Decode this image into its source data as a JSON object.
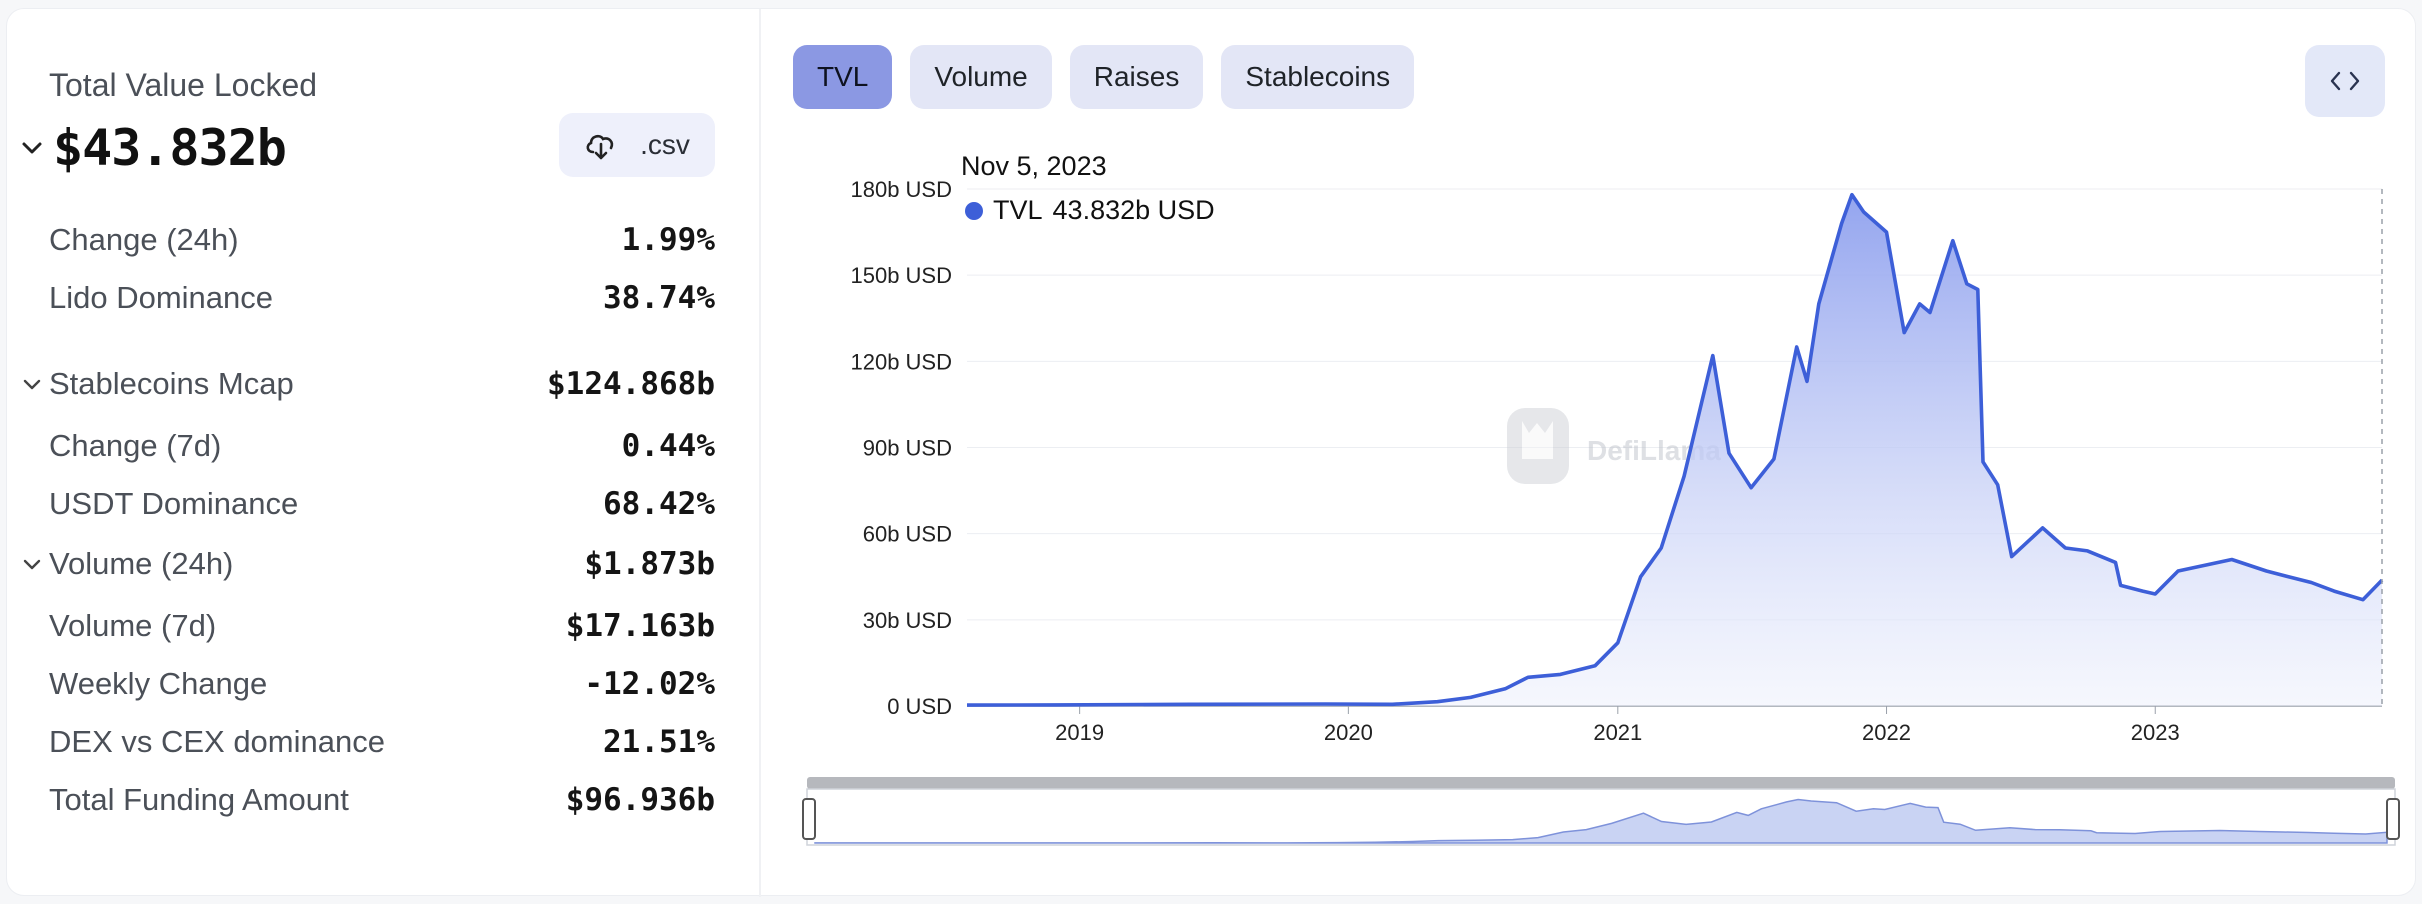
{
  "stats": {
    "tvl_label": "Total Value Locked",
    "tvl_value": "$43.832b",
    "csv_label": ".csv",
    "rows": [
      {
        "label": "Change (24h)",
        "value": "1.99%"
      },
      {
        "label": "Lido Dominance",
        "value": "38.74%"
      },
      {
        "label": "Stablecoins Mcap",
        "value": "$124.868b"
      },
      {
        "label": "Change (7d)",
        "value": "0.44%"
      },
      {
        "label": "USDT Dominance",
        "value": "68.42%"
      },
      {
        "label": "Volume (24h)",
        "value": "$1.873b"
      },
      {
        "label": "Volume (7d)",
        "value": "$17.163b"
      },
      {
        "label": "Weekly Change",
        "value": "-12.02%"
      },
      {
        "label": "DEX vs CEX dominance",
        "value": "21.51%"
      },
      {
        "label": "Total Funding Amount",
        "value": "$96.936b"
      }
    ]
  },
  "tabs": [
    {
      "label": "TVL",
      "active": true
    },
    {
      "label": "Volume"
    },
    {
      "label": "Raises"
    },
    {
      "label": "Stablecoins"
    }
  ],
  "tooltip": {
    "date": "Nov 5, 2023",
    "series": "TVL",
    "value": "43.832b USD"
  },
  "watermark": "DefiLlama",
  "colors": {
    "line": "#3d5fd8",
    "active_tab": "#8b98e3",
    "tab": "#e3e6f6"
  },
  "chart_data": {
    "type": "area",
    "series": [
      {
        "name": "TVL",
        "points": [
          [
            "2018-08-01",
            0.3
          ],
          [
            "2018-12-01",
            0.4
          ],
          [
            "2019-06-01",
            0.6
          ],
          [
            "2019-12-01",
            0.7
          ],
          [
            "2020-03-01",
            0.6
          ],
          [
            "2020-05-01",
            1.5
          ],
          [
            "2020-06-15",
            3
          ],
          [
            "2020-08-01",
            6
          ],
          [
            "2020-09-01",
            10
          ],
          [
            "2020-10-15",
            11
          ],
          [
            "2020-12-01",
            14
          ],
          [
            "2021-01-01",
            22
          ],
          [
            "2021-02-01",
            45
          ],
          [
            "2021-03-01",
            55
          ],
          [
            "2021-04-01",
            80
          ],
          [
            "2021-05-10",
            122
          ],
          [
            "2021-06-01",
            88
          ],
          [
            "2021-07-01",
            76
          ],
          [
            "2021-08-01",
            86
          ],
          [
            "2021-09-01",
            125
          ],
          [
            "2021-09-15",
            113
          ],
          [
            "2021-10-01",
            140
          ],
          [
            "2021-11-01",
            168
          ],
          [
            "2021-11-15",
            178
          ],
          [
            "2021-12-01",
            172
          ],
          [
            "2022-01-01",
            165
          ],
          [
            "2022-01-25",
            130
          ],
          [
            "2022-02-15",
            140
          ],
          [
            "2022-03-01",
            137
          ],
          [
            "2022-04-01",
            162
          ],
          [
            "2022-04-20",
            147
          ],
          [
            "2022-05-05",
            145
          ],
          [
            "2022-05-12",
            85
          ],
          [
            "2022-06-01",
            77
          ],
          [
            "2022-06-20",
            52
          ],
          [
            "2022-08-01",
            62
          ],
          [
            "2022-09-01",
            55
          ],
          [
            "2022-10-01",
            54
          ],
          [
            "2022-11-08",
            50
          ],
          [
            "2022-11-15",
            42
          ],
          [
            "2022-12-15",
            40
          ],
          [
            "2023-01-01",
            39
          ],
          [
            "2023-02-01",
            47
          ],
          [
            "2023-04-15",
            51
          ],
          [
            "2023-06-01",
            47
          ],
          [
            "2023-07-01",
            45
          ],
          [
            "2023-08-01",
            43
          ],
          [
            "2023-09-01",
            40
          ],
          [
            "2023-10-10",
            37
          ],
          [
            "2023-11-05",
            43.832
          ]
        ]
      }
    ],
    "ylim": [
      0,
      180
    ],
    "yticks": [
      "0 USD",
      "30b USD",
      "60b USD",
      "90b USD",
      "120b USD",
      "150b USD",
      "180b USD"
    ],
    "xticks": [
      "2019",
      "2020",
      "2021",
      "2022",
      "2023"
    ],
    "grid": true,
    "legend": "none"
  }
}
